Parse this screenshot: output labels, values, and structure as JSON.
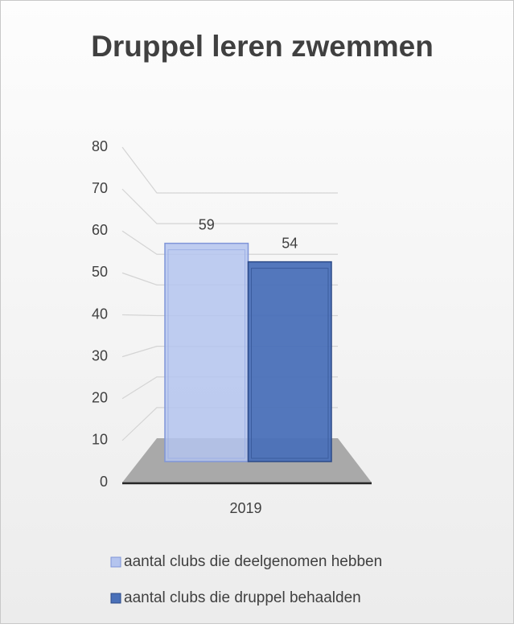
{
  "chart_data": {
    "type": "bar",
    "title": "Druppel leren zwemmen",
    "categories": [
      "2019"
    ],
    "series": [
      {
        "name": "aantal clubs die deelgenomen hebben",
        "color": "#b4c4ee",
        "values": [
          59
        ]
      },
      {
        "name": "aantal clubs die druppel behaalden",
        "color": "#4a70b8",
        "values": [
          54
        ]
      }
    ],
    "ylim": [
      0,
      80
    ],
    "yticks": [
      0,
      10,
      20,
      30,
      40,
      50,
      60,
      70,
      80
    ],
    "grid": true,
    "legend": "bottom"
  }
}
